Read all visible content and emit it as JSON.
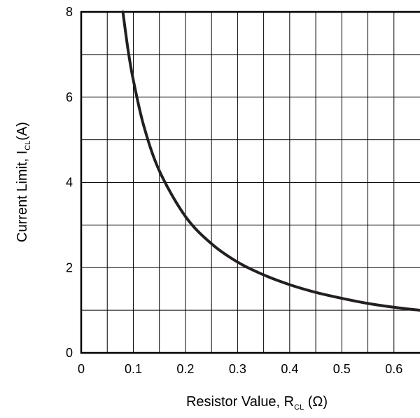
{
  "chart_data": {
    "type": "line",
    "xlabel": {
      "main": "Resistor Value, R",
      "sub": "CL",
      "suffix": " (Ω)"
    },
    "ylabel": {
      "main": "Current Limit,  I",
      "sub": "CL",
      "suffix": "(A)"
    },
    "xlim": [
      0,
      0.65
    ],
    "ylim": [
      0,
      8
    ],
    "x_ticks": [
      0,
      0.1,
      0.2,
      0.3,
      0.4,
      0.5,
      0.6
    ],
    "x_tick_labels": [
      "0",
      "0.1",
      "0.2",
      "0.3",
      "0.4",
      "0.5",
      "0.6"
    ],
    "y_ticks": [
      0,
      2,
      4,
      6,
      8
    ],
    "y_tick_labels": [
      "0",
      "2",
      "4",
      "6",
      "8"
    ],
    "grid": true,
    "x_minor_grid_step": 0.05,
    "y_minor_grid_step": 1,
    "series": [
      {
        "x": [
          0.08,
          0.09,
          0.1,
          0.12,
          0.15,
          0.2,
          0.25,
          0.3,
          0.35,
          0.4,
          0.45,
          0.5,
          0.55,
          0.6,
          0.65
        ],
        "y": [
          8,
          7.1,
          6.4,
          5.33,
          4.27,
          3.2,
          2.56,
          2.13,
          1.83,
          1.6,
          1.42,
          1.28,
          1.16,
          1.07,
          1.0
        ],
        "color": "#231f20"
      }
    ]
  }
}
